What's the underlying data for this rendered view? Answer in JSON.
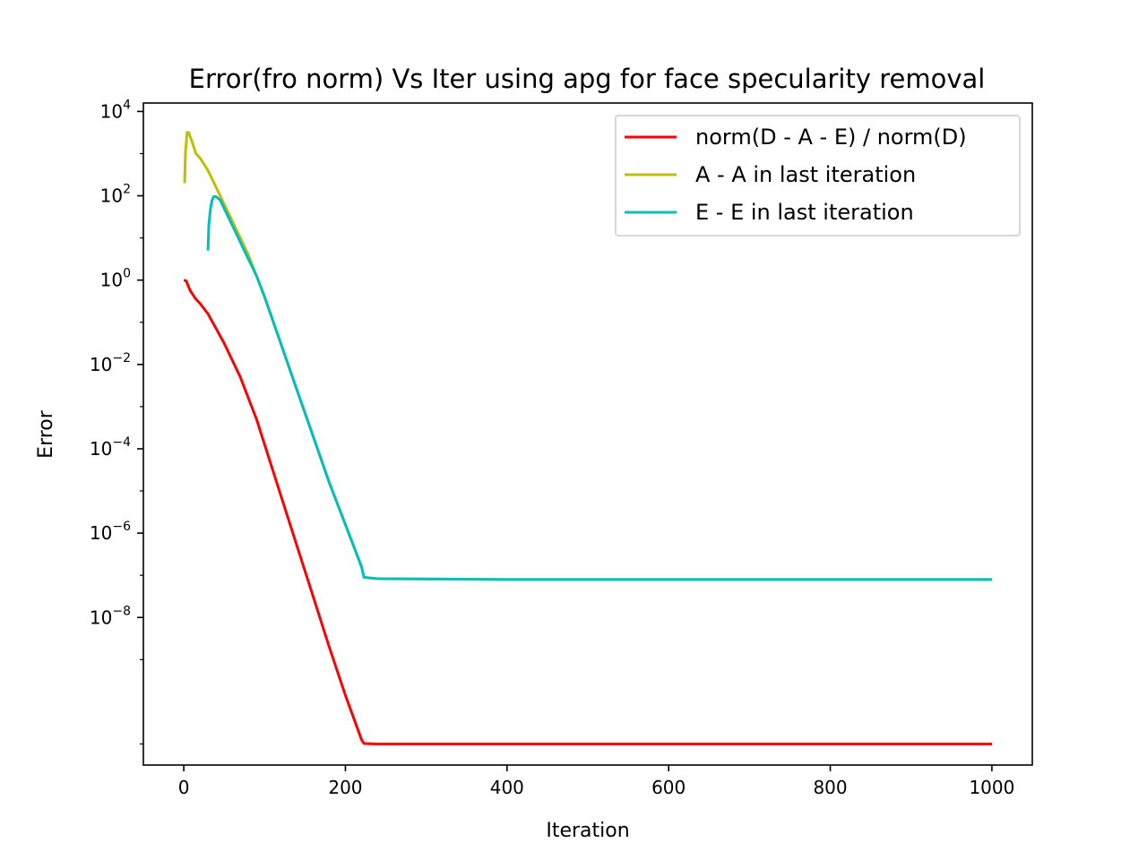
{
  "chart_data": {
    "type": "line",
    "title": "Error(fro norm) Vs Iter using apg for face specularity removal",
    "xlabel": "Iteration",
    "ylabel": "Error",
    "xlim": [
      -50,
      1050
    ],
    "ylim_log10": [
      -9.6,
      4.2
    ],
    "yscale": "log",
    "xticks": [
      {
        "value": 0,
        "label": "0"
      },
      {
        "value": 200,
        "label": "200"
      },
      {
        "value": 400,
        "label": "400"
      },
      {
        "value": 600,
        "label": "600"
      },
      {
        "value": 800,
        "label": "800"
      },
      {
        "value": 1000,
        "label": "1000"
      }
    ],
    "yticks": [
      {
        "exp": 4,
        "base": "10",
        "sup": "4"
      },
      {
        "exp": 2,
        "base": "10",
        "sup": "2"
      },
      {
        "exp": 0,
        "base": "10",
        "sup": "0"
      },
      {
        "exp": -2,
        "base": "10",
        "sup": "−2"
      },
      {
        "exp": -4,
        "base": "10",
        "sup": "−4"
      },
      {
        "exp": -6,
        "base": "10",
        "sup": "−6"
      },
      {
        "exp": -8,
        "base": "10",
        "sup": "−8"
      }
    ],
    "grid": false,
    "legend_position": "top-right",
    "series": [
      {
        "name": "norm(D - A - E) / norm(D)",
        "color": "#ff0000",
        "points_log10": [
          [
            0,
            0
          ],
          [
            3,
            -0.02
          ],
          [
            8,
            -0.25
          ],
          [
            15,
            -0.45
          ],
          [
            20,
            -0.55
          ],
          [
            30,
            -0.8
          ],
          [
            40,
            -1.15
          ],
          [
            50,
            -1.5
          ],
          [
            60,
            -1.9
          ],
          [
            70,
            -2.3
          ],
          [
            80,
            -2.8
          ],
          [
            90,
            -3.3
          ],
          [
            100,
            -3.9
          ],
          [
            120,
            -5.1
          ],
          [
            140,
            -6.3
          ],
          [
            160,
            -7.5
          ],
          [
            180,
            -8.7
          ],
          [
            200,
            -9.85
          ],
          [
            220,
            -10.9
          ],
          [
            223,
            -10.99
          ],
          [
            240,
            -11.0
          ],
          [
            400,
            -11.0
          ],
          [
            1000,
            -11.0
          ]
        ]
      },
      {
        "name": "A - A in last iteration",
        "color": "#bfbf00",
        "points_log10": [
          [
            1,
            2.3
          ],
          [
            2,
            3.0
          ],
          [
            4,
            3.5
          ],
          [
            6,
            3.5
          ],
          [
            10,
            3.3
          ],
          [
            15,
            3.0
          ],
          [
            20,
            2.9
          ],
          [
            30,
            2.6
          ],
          [
            40,
            2.2
          ],
          [
            50,
            1.8
          ],
          [
            60,
            1.4
          ],
          [
            70,
            1.0
          ],
          [
            80,
            0.6
          ],
          [
            90,
            0.1
          ],
          [
            100,
            -0.4
          ],
          [
            120,
            -1.5
          ],
          [
            140,
            -2.6
          ],
          [
            160,
            -3.7
          ],
          [
            180,
            -4.8
          ],
          [
            200,
            -5.8
          ],
          [
            220,
            -6.8
          ],
          [
            223,
            -7.05
          ],
          [
            240,
            -7.08
          ],
          [
            400,
            -7.1
          ],
          [
            1000,
            -7.1
          ]
        ]
      },
      {
        "name": "E - E in last iteration",
        "color": "#00bfbf",
        "points_log10": [
          [
            30,
            0.7
          ],
          [
            31,
            1.3
          ],
          [
            33,
            1.7
          ],
          [
            35,
            1.9
          ],
          [
            37,
            1.98
          ],
          [
            40,
            1.98
          ],
          [
            45,
            1.9
          ],
          [
            50,
            1.7
          ],
          [
            60,
            1.3
          ],
          [
            70,
            0.9
          ],
          [
            80,
            0.5
          ],
          [
            90,
            0.1
          ],
          [
            100,
            -0.4
          ],
          [
            120,
            -1.5
          ],
          [
            140,
            -2.6
          ],
          [
            160,
            -3.7
          ],
          [
            180,
            -4.8
          ],
          [
            200,
            -5.8
          ],
          [
            220,
            -6.8
          ],
          [
            223,
            -7.05
          ],
          [
            240,
            -7.08
          ],
          [
            400,
            -7.1
          ],
          [
            1000,
            -7.1
          ]
        ]
      }
    ]
  }
}
